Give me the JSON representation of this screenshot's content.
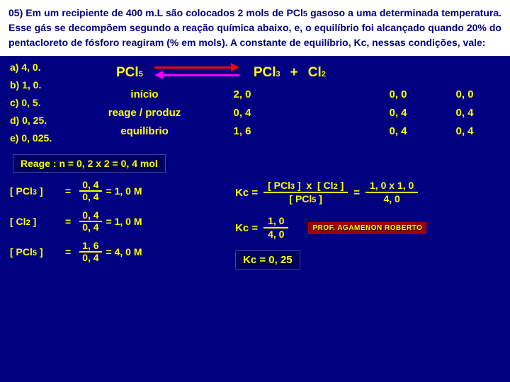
{
  "header": "05) Em um recipiente de 400 m.L são colocados 2 mols de PCl5 gasoso a uma determinada temperatura. Esse gás se decompõem segundo a reação química abaixo, e, o equilíbrio foi alcançado quando 20% do pentacloreto de fósforo reagiram (% em mols). A constante de equilíbrio, Kc, nessas condições, vale:",
  "options": {
    "a": "a)  4, 0.",
    "b": "b)  1, 0.",
    "c": "c)  0, 5.",
    "d": "d)  0, 25.",
    "e": "e)  0, 025."
  },
  "reaction": {
    "r1": "PCl",
    "r1sub": "5",
    "plus": "+",
    "p1": "PCl",
    "p1sub": "3",
    "p2": "Cl",
    "p2sub": "2"
  },
  "table": {
    "labels": {
      "inicio": "início",
      "reage": "reage / produz",
      "eq": "equilíbrio"
    },
    "rows": {
      "inicio": {
        "c1": "2, 0",
        "c2": "0, 0",
        "c3": "0, 0"
      },
      "reage": {
        "c1": "0, 4",
        "c2": "0, 4",
        "c3": "0, 4"
      },
      "eq": {
        "c1": "1, 6",
        "c2": "0, 4",
        "c3": "0, 4"
      }
    }
  },
  "reage_stmt": "Reage : n = 0, 2 x 2 = 0, 4 mol",
  "conc": {
    "pcl3": {
      "lhs": "[ PCl3 ]",
      "eq": "=",
      "num": "0, 4",
      "den": "0, 4",
      "res": "= 1, 0 M"
    },
    "cl2": {
      "lhs": "[ Cl2 ]",
      "eq": "=",
      "num": "0, 4",
      "den": "0, 4",
      "res": "= 1, 0 M"
    },
    "pcl5": {
      "lhs": "[ PCl5 ]",
      "eq": "=",
      "num": "1, 6",
      "den": "0, 4",
      "res": "= 4, 0 M"
    }
  },
  "kc": {
    "expr": {
      "lhs": "Kc  =",
      "num": "[ PCl3 ]  x  [ Cl2 ]",
      "den": "[ PCl5 ]",
      "eq2": "=",
      "num2": "1, 0 x 1, 0",
      "den2": "4, 0"
    },
    "val": {
      "lhs": "Kc  =",
      "num": "1, 0",
      "den": "4, 0"
    },
    "answer": "Kc = 0, 25"
  },
  "prof": "PROF. AGAMENON ROBERTO"
}
